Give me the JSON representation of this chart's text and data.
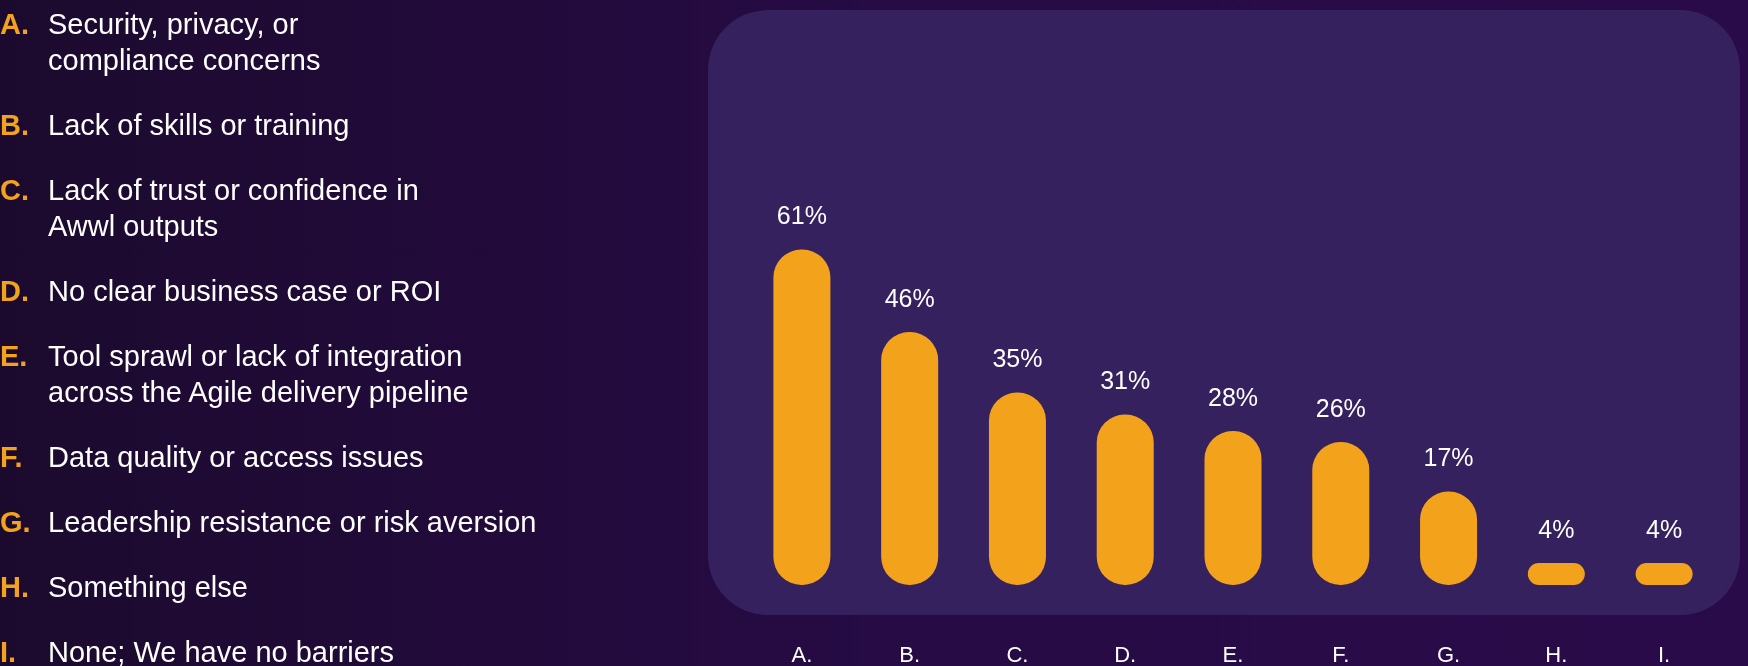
{
  "chart_data": {
    "type": "bar",
    "categories": [
      "A.",
      "B.",
      "C.",
      "D.",
      "E.",
      "F.",
      "G.",
      "H.",
      "I."
    ],
    "values": [
      61,
      46,
      35,
      31,
      28,
      26,
      17,
      4,
      4
    ],
    "value_labels": [
      "61%",
      "46%",
      "35%",
      "31%",
      "28%",
      "26%",
      "17%",
      "4%",
      "4%"
    ],
    "color": "#f2a31b",
    "annotations": [
      "A. Security, privacy, or\ncompliance concerns",
      "B. Lack of skills or training",
      "C. Lack of trust or confidence in\nAwwl outputs",
      "D. No clear business case or ROI",
      "E. Tool sprawl or lack of integration\nacross the Agile delivery pipeline",
      "F. Data quality or access issues",
      "G. Leadership resistance or risk aversion",
      "H. Something else",
      "I. None; We have no barriers"
    ]
  }
}
